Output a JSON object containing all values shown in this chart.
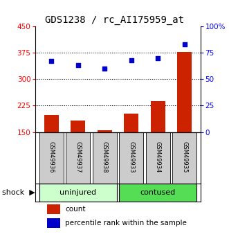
{
  "title": "GDS1238 / rc_AI175959_at",
  "samples": [
    "GSM49936",
    "GSM49937",
    "GSM49938",
    "GSM49933",
    "GSM49934",
    "GSM49935"
  ],
  "count_values": [
    198,
    182,
    155,
    202,
    238,
    378
  ],
  "percentile_values": [
    67,
    63,
    60,
    68,
    70,
    83
  ],
  "groups": [
    {
      "label": "uninjured",
      "indices": [
        0,
        1,
        2
      ],
      "color": "#ccffcc"
    },
    {
      "label": "contused",
      "indices": [
        3,
        4,
        5
      ],
      "color": "#55dd55"
    }
  ],
  "factor_label": "shock",
  "ylim_left": [
    150,
    450
  ],
  "ylim_right": [
    0,
    100
  ],
  "yticks_left": [
    150,
    225,
    300,
    375,
    450
  ],
  "yticks_right": [
    0,
    25,
    50,
    75,
    100
  ],
  "ytick_labels_right": [
    "0",
    "25",
    "50",
    "75",
    "100%"
  ],
  "bar_color": "#cc2200",
  "scatter_color": "#0000cc",
  "bar_width": 0.55,
  "title_fontsize": 10,
  "tick_fontsize": 7.5,
  "label_fontsize": 8,
  "background_color": "#ffffff",
  "sample_bg_color": "#cccccc",
  "dotted_lines": [
    225,
    300,
    375
  ]
}
